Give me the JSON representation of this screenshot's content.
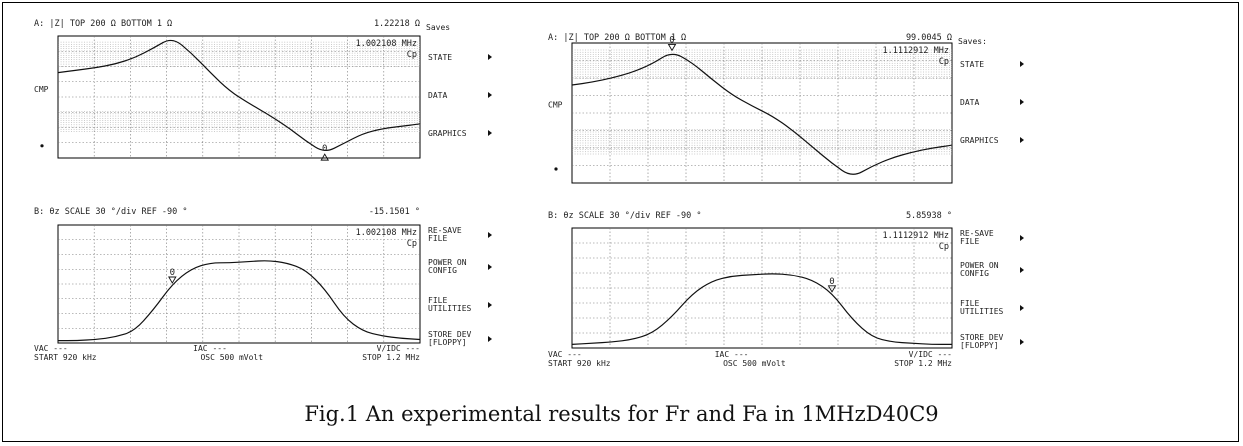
{
  "caption": "Fig.1 An experimental results for Fr and Fa in 1MHzD40C9",
  "softkeys": {
    "saves_title": "Saves",
    "state": "STATE",
    "data": "DATA",
    "graphics": "GRAPHICS",
    "resave_1": "RE-SAVE",
    "resave_2": "FILE",
    "poweron_1": "POWER ON",
    "poweron_2": "CONFIG",
    "fileutil_1": "FILE",
    "fileutil_2": "UTILITIES",
    "storedev_1": "STORE DEV",
    "storedev_2": "[FLOPPY]"
  },
  "chart_data": [
    {
      "id": "left",
      "type": "line",
      "x_start": "START 920 kHz",
      "x_stop": "STOP 1.2 MHz",
      "x_range_hz": [
        920000,
        1200000
      ],
      "top": {
        "header": "A: |Z| TOP    200 Ω BOTTOM    1 Ω",
        "readout": "1.22218 Ω",
        "freq": "1.002108 MHz",
        "mode": "Cp",
        "cmp": "CMP",
        "marker": "0",
        "marker_pos": "min",
        "trace_y": [
          0.7,
          0.72,
          0.74,
          0.77,
          0.82,
          0.9,
          0.99,
          0.86,
          0.7,
          0.55,
          0.45,
          0.36,
          0.26,
          0.14,
          0.04,
          0.12,
          0.2,
          0.24,
          0.26,
          0.28
        ]
      },
      "bottom": {
        "header": "B: θz   SCALE    30 °/div REF    -90 °",
        "readout": "-15.1501 °",
        "freq": "1.002108 MHz",
        "mode": "Cp",
        "marker": "0",
        "marker_pos": "rise",
        "trace_y": [
          0.02,
          0.02,
          0.03,
          0.05,
          0.1,
          0.28,
          0.5,
          0.63,
          0.68,
          0.68,
          0.69,
          0.7,
          0.68,
          0.62,
          0.46,
          0.22,
          0.1,
          0.06,
          0.04,
          0.03
        ]
      },
      "footer": {
        "vac": "VAC ---",
        "iac": "IAC ---",
        "osc": "OSC 500 mVolt",
        "vdc": "V/IDC ---"
      }
    },
    {
      "id": "right",
      "type": "line",
      "x_start": "START 920 kHz",
      "x_stop": "STOP 1.2 MHz",
      "x_range_hz": [
        920000,
        1200000
      ],
      "top": {
        "header": "A: |Z| TOP    200 Ω BOTTOM    1 Ω",
        "readout": "99.0045 Ω",
        "freq": "1.1112912 MHz",
        "mode": "Cp",
        "cmp": "CMP",
        "marker": "0",
        "marker_pos": "max",
        "trace_y": [
          0.7,
          0.72,
          0.75,
          0.79,
          0.85,
          0.94,
          0.86,
          0.74,
          0.63,
          0.55,
          0.48,
          0.38,
          0.26,
          0.14,
          0.04,
          0.12,
          0.18,
          0.22,
          0.25,
          0.27
        ]
      },
      "bottom": {
        "header": "B: θz   SCALE    30 °/div REF    -90 °",
        "readout": "5.85938 °",
        "freq": "1.1112912 MHz",
        "mode": "Cp",
        "marker": "0",
        "marker_pos": "fall",
        "trace_y": [
          0.03,
          0.04,
          0.05,
          0.07,
          0.12,
          0.26,
          0.45,
          0.56,
          0.6,
          0.61,
          0.62,
          0.61,
          0.57,
          0.46,
          0.24,
          0.09,
          0.05,
          0.04,
          0.03,
          0.03
        ]
      },
      "footer": {
        "vac": "VAC ---",
        "iac": "IAC ---",
        "osc": "OSC 500 mVolt",
        "vdc": "V/IDC ---"
      }
    }
  ]
}
